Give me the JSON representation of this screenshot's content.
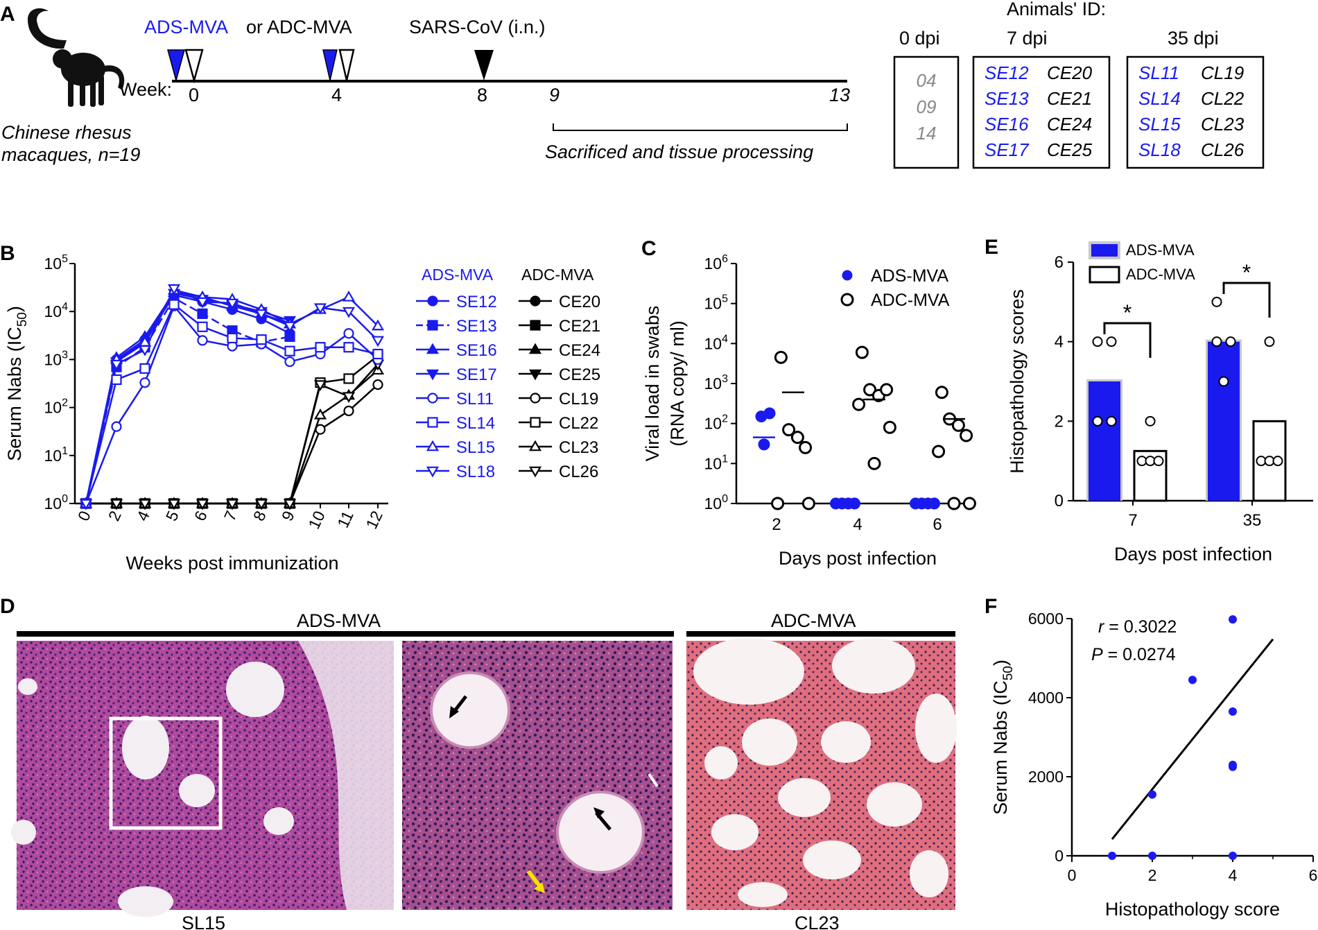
{
  "colors": {
    "ads": "#1a1aee",
    "adc": "#000000",
    "gray": "#888888"
  },
  "panel_a": {
    "letter": "A",
    "vaccine_ads": "ADS-MVA",
    "vaccine_or": "or ADC-MVA",
    "challenge": "SARS-CoV (i.n.)",
    "week_label": "Week:",
    "weeks": [
      "0",
      "4",
      "8",
      "9",
      "13"
    ],
    "sacrifice": "Sacrificed and tissue processing",
    "species_line1": "Chinese rhesus",
    "species_line2": "macaques, n=19",
    "animals_title": "Animals' ID:",
    "groups": [
      {
        "dpi": "0 dpi",
        "ads": [],
        "adc": [
          "04",
          "09",
          "14"
        ]
      },
      {
        "dpi": "7 dpi",
        "ads": [
          "SE12",
          "SE13",
          "SE16",
          "SE17"
        ],
        "adc": [
          "CE20",
          "CE21",
          "CE24",
          "CE25"
        ]
      },
      {
        "dpi": "35 dpi",
        "ads": [
          "SL11",
          "SL14",
          "SL15",
          "SL18"
        ],
        "adc": [
          "CL19",
          "CL22",
          "CL23",
          "CL26"
        ]
      }
    ]
  },
  "panel_b": {
    "letter": "B",
    "legend_ads_title": "ADS-MVA",
    "legend_adc_title": "ADC-MVA"
  },
  "panel_c": {
    "letter": "C"
  },
  "panel_e": {
    "letter": "E"
  },
  "panel_d": {
    "letter": "D",
    "group_ads": "ADS-MVA",
    "group_adc": "ADC-MVA",
    "label_left": "SL15",
    "label_right": "CL23"
  },
  "panel_f": {
    "letter": "F"
  },
  "chart_data": [
    {
      "id": "B",
      "type": "line",
      "ylabel": "Serum Nabs (IC50)",
      "xlabel": "Weeks post  immunization",
      "yscale": "log",
      "ylim": [
        1,
        100000
      ],
      "x": [
        0,
        2,
        4,
        5,
        6,
        7,
        8,
        9,
        10,
        11,
        12
      ],
      "yticks": [
        "10",
        "10",
        "10",
        "10",
        "10",
        "10"
      ],
      "yexp": [
        "0",
        "1",
        "2",
        "3",
        "4",
        "5"
      ],
      "series": [
        {
          "name": "SE12",
          "group": "ads",
          "marker": "circle",
          "fill": true,
          "dash": false,
          "values": [
            1,
            1000,
            2600,
            22000,
            16000,
            11000,
            7000,
            3500,
            null,
            null,
            null
          ]
        },
        {
          "name": "SE13",
          "group": "ads",
          "marker": "square",
          "fill": true,
          "dash": true,
          "values": [
            1,
            700,
            1800,
            19000,
            9000,
            4000,
            2300,
            3000,
            null,
            null,
            null
          ]
        },
        {
          "name": "SE16",
          "group": "ads",
          "marker": "tri-up",
          "fill": true,
          "dash": false,
          "values": [
            1,
            1100,
            3000,
            25000,
            20000,
            13000,
            9000,
            5500,
            null,
            null,
            null
          ]
        },
        {
          "name": "SE17",
          "group": "ads",
          "marker": "tri-down",
          "fill": true,
          "dash": false,
          "values": [
            1,
            900,
            2200,
            24000,
            18000,
            14000,
            10000,
            6500,
            null,
            null,
            null
          ]
        },
        {
          "name": "SL11",
          "group": "ads",
          "marker": "circle",
          "fill": false,
          "dash": false,
          "values": [
            1,
            40,
            330,
            13000,
            2500,
            1900,
            2100,
            900,
            1300,
            3500,
            1000
          ]
        },
        {
          "name": "SL14",
          "group": "ads",
          "marker": "square",
          "fill": false,
          "dash": false,
          "values": [
            1,
            380,
            650,
            14000,
            4800,
            2800,
            2600,
            1500,
            1800,
            1800,
            1300
          ]
        },
        {
          "name": "SL15",
          "group": "ads",
          "marker": "tri-up",
          "fill": false,
          "dash": false,
          "values": [
            1,
            1000,
            2300,
            28000,
            20000,
            18000,
            11000,
            5500,
            11000,
            20000,
            5000
          ]
        },
        {
          "name": "SL18",
          "group": "ads",
          "marker": "tri-down",
          "fill": false,
          "dash": false,
          "values": [
            1,
            800,
            1600,
            30000,
            16000,
            15000,
            9000,
            5000,
            12000,
            10000,
            2500
          ]
        },
        {
          "name": "CE20",
          "group": "adc",
          "marker": "circle",
          "fill": true,
          "dash": false,
          "values": [
            1,
            1,
            1,
            1,
            1,
            1,
            1,
            1,
            null,
            null,
            null
          ]
        },
        {
          "name": "CE21",
          "group": "adc",
          "marker": "square",
          "fill": true,
          "dash": false,
          "values": [
            1,
            1,
            1,
            1,
            1,
            1,
            1,
            1,
            null,
            null,
            null
          ]
        },
        {
          "name": "CE24",
          "group": "adc",
          "marker": "tri-up",
          "fill": true,
          "dash": false,
          "values": [
            1,
            1,
            1,
            1,
            1,
            1,
            1,
            1,
            null,
            null,
            null
          ]
        },
        {
          "name": "CE25",
          "group": "adc",
          "marker": "tri-down",
          "fill": true,
          "dash": false,
          "values": [
            1,
            1,
            1,
            1,
            1,
            1,
            1,
            1,
            null,
            null,
            null
          ]
        },
        {
          "name": "CL19",
          "group": "adc",
          "marker": "circle",
          "fill": false,
          "dash": false,
          "values": [
            1,
            1,
            1,
            1,
            1,
            1,
            1,
            1,
            35,
            85,
            300
          ]
        },
        {
          "name": "CL22",
          "group": "adc",
          "marker": "square",
          "fill": false,
          "dash": false,
          "values": [
            1,
            1,
            1,
            1,
            1,
            1,
            1,
            1,
            330,
            400,
            1200
          ]
        },
        {
          "name": "CL23",
          "group": "adc",
          "marker": "tri-up",
          "fill": false,
          "dash": false,
          "values": [
            1,
            1,
            1,
            1,
            1,
            1,
            1,
            1,
            70,
            180,
            600
          ]
        },
        {
          "name": "CL26",
          "group": "adc",
          "marker": "tri-down",
          "fill": false,
          "dash": false,
          "values": [
            1,
            1,
            1,
            1,
            1,
            1,
            1,
            1,
            300,
            170,
            800
          ]
        }
      ]
    },
    {
      "id": "C",
      "type": "scatter",
      "ylabel_line1": "Viral load in swabs",
      "ylabel_line2": "(RNA copy/ ml)",
      "xlabel": "Days post infection",
      "yscale": "log",
      "ylim": [
        1,
        1000000
      ],
      "categories": [
        "2",
        "4",
        "6"
      ],
      "yticks": [
        "10",
        "10",
        "10",
        "10",
        "10",
        "10",
        "10"
      ],
      "yexp": [
        "0",
        "1",
        "2",
        "3",
        "4",
        "5",
        "6"
      ],
      "series": [
        {
          "name": "ADS-MVA",
          "fill": true,
          "points": [
            [
              2,
              180
            ],
            [
              2,
              150
            ],
            [
              2,
              30
            ],
            [
              4,
              1
            ],
            [
              4,
              1
            ],
            [
              4,
              1
            ],
            [
              4,
              1
            ],
            [
              6,
              1
            ],
            [
              6,
              1
            ],
            [
              6,
              1
            ],
            [
              6,
              1
            ]
          ],
          "means": [
            [
              2,
              45
            ],
            [
              4,
              1
            ],
            [
              6,
              1
            ]
          ]
        },
        {
          "name": "ADC-MVA",
          "fill": false,
          "points": [
            [
              2,
              4500
            ],
            [
              2,
              70
            ],
            [
              2,
              45
            ],
            [
              2,
              25
            ],
            [
              2,
              1
            ],
            [
              2,
              1
            ],
            [
              4,
              6000
            ],
            [
              4,
              700
            ],
            [
              4,
              500
            ],
            [
              4,
              700
            ],
            [
              4,
              300
            ],
            [
              4,
              80
            ],
            [
              4,
              10
            ],
            [
              6,
              600
            ],
            [
              6,
              130
            ],
            [
              6,
              90
            ],
            [
              6,
              50
            ],
            [
              6,
              20
            ],
            [
              6,
              1
            ],
            [
              6,
              1
            ]
          ],
          "means": [
            [
              2,
              600
            ],
            [
              4,
              400
            ],
            [
              6,
              130
            ]
          ]
        }
      ]
    },
    {
      "id": "E",
      "type": "bar",
      "ylabel": "Histopathology scores",
      "xlabel": "Days post infection",
      "categories": [
        "7",
        "35"
      ],
      "ylim": [
        0,
        6
      ],
      "yticks": [
        "0",
        "2",
        "4",
        "6"
      ],
      "significance": "*",
      "series": [
        {
          "name": "ADS-MVA",
          "values": [
            3,
            4
          ],
          "points": [
            [
              4,
              4,
              2,
              2
            ],
            [
              5,
              4,
              4,
              3
            ]
          ]
        },
        {
          "name": "ADC-MVA",
          "values": [
            1.25,
            2
          ],
          "points": [
            [
              2,
              1,
              1,
              1
            ],
            [
              4,
              1,
              1,
              1
            ]
          ]
        }
      ]
    },
    {
      "id": "F",
      "type": "scatter",
      "ylabel": "Serum Nabs (IC50)",
      "xlabel": "Histopathology score",
      "xlim": [
        0,
        6
      ],
      "ylim": [
        0,
        6000
      ],
      "xticks": [
        "0",
        "2",
        "4",
        "6"
      ],
      "yticks": [
        "0",
        "2000",
        "4000",
        "6000"
      ],
      "stat_r": "r",
      "stat_r_value": " = 0.3022",
      "stat_p": "P",
      "stat_p_value": " = 0.0274",
      "points": [
        [
          1,
          0
        ],
        [
          2,
          0
        ],
        [
          2,
          1550
        ],
        [
          3,
          4450
        ],
        [
          4,
          5980
        ],
        [
          4,
          3650
        ],
        [
          4,
          2300
        ],
        [
          4,
          2250
        ],
        [
          4,
          0
        ]
      ],
      "fit": [
        [
          1,
          420
        ],
        [
          5,
          5480
        ]
      ]
    }
  ]
}
